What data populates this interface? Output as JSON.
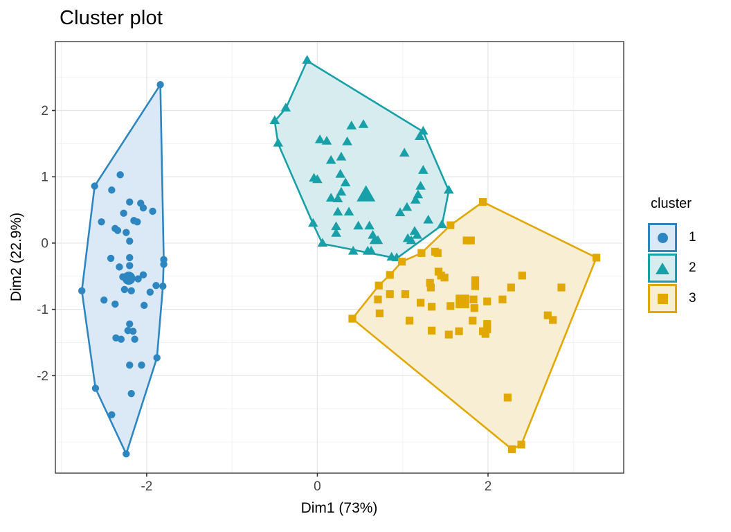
{
  "title": "Cluster plot",
  "legend": {
    "title": "cluster",
    "entries": [
      {
        "label": "1",
        "marker": "circle"
      },
      {
        "label": "2",
        "marker": "triangle"
      },
      {
        "label": "3",
        "marker": "square"
      }
    ]
  },
  "chart_data": {
    "type": "scatter",
    "title": "Cluster plot",
    "xlabel": "Dim1 (73%)",
    "ylabel": "Dim2 (22.9%)",
    "xlim": [
      -3.07,
      3.59
    ],
    "ylim": [
      -3.47,
      3.04
    ],
    "x_ticks": [
      -2,
      0,
      2
    ],
    "y_ticks": [
      -2,
      -1,
      0,
      1,
      2
    ],
    "x_minor_ticks": [
      -3,
      -1,
      1,
      3
    ],
    "y_minor_ticks": [
      -3,
      -2.5,
      -1.5,
      -0.5,
      0.5,
      1.5,
      2.5
    ],
    "grid": true,
    "legend_position": "right",
    "series": [
      {
        "name": "1",
        "marker": "circle",
        "color": "#2E86C1",
        "fill": "#DBE9F6",
        "centroid": [
          -2.21,
          -0.53
        ],
        "hull": [
          [
            -1.84,
            2.39
          ],
          [
            -1.8,
            -0.25
          ],
          [
            -1.81,
            -0.65
          ],
          [
            -1.88,
            -1.73
          ],
          [
            -2.24,
            -3.18
          ],
          [
            -2.6,
            -2.19
          ],
          [
            -2.76,
            -0.72
          ],
          [
            -2.61,
            0.86
          ]
        ],
        "points": [
          [
            -1.84,
            2.39
          ],
          [
            -2.31,
            1.03
          ],
          [
            -2.61,
            0.86
          ],
          [
            -2.41,
            0.8
          ],
          [
            -2.2,
            0.62
          ],
          [
            -2.07,
            0.6
          ],
          [
            -2.04,
            0.53
          ],
          [
            -1.93,
            0.48
          ],
          [
            -2.27,
            0.45
          ],
          [
            -2.15,
            0.34
          ],
          [
            -2.53,
            0.32
          ],
          [
            -2.11,
            0.32
          ],
          [
            -2.37,
            0.22
          ],
          [
            -2.34,
            0.19
          ],
          [
            -2.24,
            0.16
          ],
          [
            -2.2,
            0.03
          ],
          [
            -2.42,
            -0.23
          ],
          [
            -2.2,
            -0.22
          ],
          [
            -1.8,
            -0.25
          ],
          [
            -2.32,
            -0.36
          ],
          [
            -2.2,
            -0.34
          ],
          [
            -1.8,
            -0.32
          ],
          [
            -2.04,
            -0.48
          ],
          [
            -2.28,
            -0.51
          ],
          [
            -2.1,
            -0.54
          ],
          [
            -1.89,
            -0.64
          ],
          [
            -1.81,
            -0.65
          ],
          [
            -2.26,
            -0.7
          ],
          [
            -2.18,
            -0.72
          ],
          [
            -2.76,
            -0.72
          ],
          [
            -1.96,
            -0.74
          ],
          [
            -2.5,
            -0.86
          ],
          [
            -2.37,
            -0.92
          ],
          [
            -2.03,
            -0.94
          ],
          [
            -2.2,
            -1.22
          ],
          [
            -2.22,
            -1.32
          ],
          [
            -2.16,
            -1.33
          ],
          [
            -2.36,
            -1.43
          ],
          [
            -2.3,
            -1.45
          ],
          [
            -2.14,
            -1.45
          ],
          [
            -1.88,
            -1.73
          ],
          [
            -2.2,
            -1.84
          ],
          [
            -2.06,
            -1.84
          ],
          [
            -2.6,
            -2.19
          ],
          [
            -2.18,
            -2.27
          ],
          [
            -2.41,
            -2.59
          ],
          [
            -2.24,
            -3.18
          ]
        ]
      },
      {
        "name": "2",
        "marker": "triangle",
        "color": "#17A0A8",
        "fill": "#D6ECEE",
        "centroid": [
          0.57,
          0.71
        ],
        "hull": [
          [
            -0.12,
            2.75
          ],
          [
            1.24,
            1.68
          ],
          [
            1.54,
            0.79
          ],
          [
            1.46,
            0.27
          ],
          [
            0.93,
            -0.23
          ],
          [
            0.06,
            -0.01
          ],
          [
            -0.05,
            0.29
          ],
          [
            -0.46,
            1.5
          ],
          [
            -0.5,
            1.84
          ],
          [
            -0.37,
            2.03
          ]
        ],
        "points": [
          [
            -0.12,
            2.75
          ],
          [
            -0.37,
            2.03
          ],
          [
            -0.5,
            1.84
          ],
          [
            0.54,
            1.78
          ],
          [
            0.4,
            1.76
          ],
          [
            1.24,
            1.68
          ],
          [
            1.2,
            1.6
          ],
          [
            0.03,
            1.55
          ],
          [
            0.11,
            1.53
          ],
          [
            0.35,
            1.52
          ],
          [
            -0.46,
            1.5
          ],
          [
            1.02,
            1.35
          ],
          [
            0.28,
            1.29
          ],
          [
            0.16,
            1.24
          ],
          [
            1.24,
            1.09
          ],
          [
            0.27,
            1.03
          ],
          [
            -0.04,
            0.97
          ],
          [
            0.0,
            0.95
          ],
          [
            0.33,
            0.9
          ],
          [
            1.21,
            0.85
          ],
          [
            1.54,
            0.79
          ],
          [
            0.28,
            0.76
          ],
          [
            1.18,
            0.72
          ],
          [
            0.16,
            0.67
          ],
          [
            0.24,
            0.66
          ],
          [
            1.15,
            0.64
          ],
          [
            1.05,
            0.53
          ],
          [
            0.97,
            0.45
          ],
          [
            0.24,
            0.46
          ],
          [
            0.37,
            0.46
          ],
          [
            1.3,
            0.34
          ],
          [
            -0.05,
            0.29
          ],
          [
            1.46,
            0.27
          ],
          [
            0.48,
            0.25
          ],
          [
            0.61,
            0.25
          ],
          [
            0.22,
            0.24
          ],
          [
            1.14,
            0.17
          ],
          [
            0.22,
            0.14
          ],
          [
            1.17,
            0.11
          ],
          [
            0.65,
            0.11
          ],
          [
            1.06,
            0.06
          ],
          [
            1.1,
            0.03
          ],
          [
            0.67,
            0.03
          ],
          [
            0.71,
            0.03
          ],
          [
            0.06,
            -0.01
          ],
          [
            0.59,
            -0.13
          ],
          [
            0.63,
            -0.13
          ],
          [
            0.42,
            -0.13
          ],
          [
            0.87,
            -0.22
          ],
          [
            0.93,
            -0.23
          ]
        ]
      },
      {
        "name": "3",
        "marker": "square",
        "color": "#E0A800",
        "fill": "#F8EED3",
        "centroid": [
          1.7,
          -0.88
        ],
        "hull": [
          [
            1.94,
            0.62
          ],
          [
            3.27,
            -0.22
          ],
          [
            2.39,
            -3.04
          ],
          [
            2.28,
            -3.11
          ],
          [
            0.41,
            -1.14
          ],
          [
            0.72,
            -0.64
          ],
          [
            0.85,
            -0.48
          ],
          [
            0.99,
            -0.28
          ],
          [
            1.22,
            -0.15
          ],
          [
            1.56,
            0.27
          ]
        ],
        "points": [
          [
            1.94,
            0.62
          ],
          [
            1.56,
            0.27
          ],
          [
            1.75,
            0.04
          ],
          [
            1.8,
            0.04
          ],
          [
            1.38,
            -0.13
          ],
          [
            1.22,
            -0.15
          ],
          [
            1.41,
            -0.15
          ],
          [
            3.27,
            -0.22
          ],
          [
            0.99,
            -0.28
          ],
          [
            1.42,
            -0.43
          ],
          [
            0.85,
            -0.48
          ],
          [
            2.4,
            -0.49
          ],
          [
            1.45,
            -0.49
          ],
          [
            1.49,
            -0.52
          ],
          [
            1.85,
            -0.56
          ],
          [
            1.32,
            -0.6
          ],
          [
            0.72,
            -0.64
          ],
          [
            1.85,
            -0.65
          ],
          [
            1.33,
            -0.67
          ],
          [
            2.27,
            -0.67
          ],
          [
            2.86,
            -0.67
          ],
          [
            0.85,
            -0.77
          ],
          [
            1.03,
            -0.77
          ],
          [
            0.71,
            -0.85
          ],
          [
            2.17,
            -0.85
          ],
          [
            1.83,
            -0.85
          ],
          [
            1.99,
            -0.88
          ],
          [
            1.21,
            -0.9
          ],
          [
            1.56,
            -0.95
          ],
          [
            1.34,
            -0.96
          ],
          [
            1.84,
            -0.98
          ],
          [
            0.73,
            -1.06
          ],
          [
            2.7,
            -1.09
          ],
          [
            0.41,
            -1.14
          ],
          [
            2.76,
            -1.16
          ],
          [
            1.08,
            -1.17
          ],
          [
            1.82,
            -1.17
          ],
          [
            1.99,
            -1.22
          ],
          [
            1.99,
            -1.3
          ],
          [
            1.34,
            -1.32
          ],
          [
            1.66,
            -1.33
          ],
          [
            1.94,
            -1.33
          ],
          [
            1.97,
            -1.37
          ],
          [
            1.54,
            -1.38
          ],
          [
            2.23,
            -2.33
          ],
          [
            2.39,
            -3.04
          ],
          [
            2.28,
            -3.11
          ]
        ]
      }
    ]
  }
}
